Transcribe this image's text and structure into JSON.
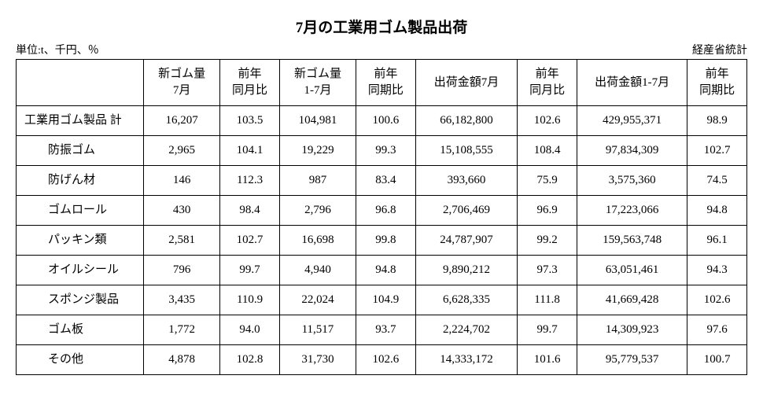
{
  "title": "7月の工業用ゴム製品出荷",
  "unit_label": "単位:t、千円、％",
  "source_label": "経産省統計",
  "columns": [
    "",
    "新ゴム量\n7月",
    "前年\n同月比",
    "新ゴム量\n1-7月",
    "前年\n同期比",
    "出荷金額7月",
    "前年\n同月比",
    "出荷金額1-7月",
    "前年\n同期比"
  ],
  "rows": [
    {
      "label": "工業用ゴム製品 計",
      "indent": false,
      "cells": [
        "16,207",
        "103.5",
        "104,981",
        "100.6",
        "66,182,800",
        "102.6",
        "429,955,371",
        "98.9"
      ]
    },
    {
      "label": "防振ゴム",
      "indent": true,
      "cells": [
        "2,965",
        "104.1",
        "19,229",
        "99.3",
        "15,108,555",
        "108.4",
        "97,834,309",
        "102.7"
      ]
    },
    {
      "label": "防げん材",
      "indent": true,
      "cells": [
        "146",
        "112.3",
        "987",
        "83.4",
        "393,660",
        "75.9",
        "3,575,360",
        "74.5"
      ]
    },
    {
      "label": "ゴムロール",
      "indent": true,
      "cells": [
        "430",
        "98.4",
        "2,796",
        "96.8",
        "2,706,469",
        "96.9",
        "17,223,066",
        "94.8"
      ]
    },
    {
      "label": "パッキン類",
      "indent": true,
      "cells": [
        "2,581",
        "102.7",
        "16,698",
        "99.8",
        "24,787,907",
        "99.2",
        "159,563,748",
        "96.1"
      ]
    },
    {
      "label": "オイルシール",
      "indent": true,
      "cells": [
        "796",
        "99.7",
        "4,940",
        "94.8",
        "9,890,212",
        "97.3",
        "63,051,461",
        "94.3"
      ]
    },
    {
      "label": "スポンジ製品",
      "indent": true,
      "cells": [
        "3,435",
        "110.9",
        "22,024",
        "104.9",
        "6,628,335",
        "111.8",
        "41,669,428",
        "102.6"
      ]
    },
    {
      "label": "ゴム板",
      "indent": true,
      "cells": [
        "1,772",
        "94.0",
        "11,517",
        "93.7",
        "2,224,702",
        "99.7",
        "14,309,923",
        "97.6"
      ]
    },
    {
      "label": "その他",
      "indent": true,
      "cells": [
        "4,878",
        "102.8",
        "31,730",
        "102.6",
        "14,333,172",
        "101.6",
        "95,779,537",
        "100.7"
      ]
    }
  ],
  "style": {
    "background_color": "#ffffff",
    "text_color": "#000000",
    "border_color": "#000000",
    "title_fontsize": 19,
    "body_fontsize": 15,
    "meta_fontsize": 14
  }
}
